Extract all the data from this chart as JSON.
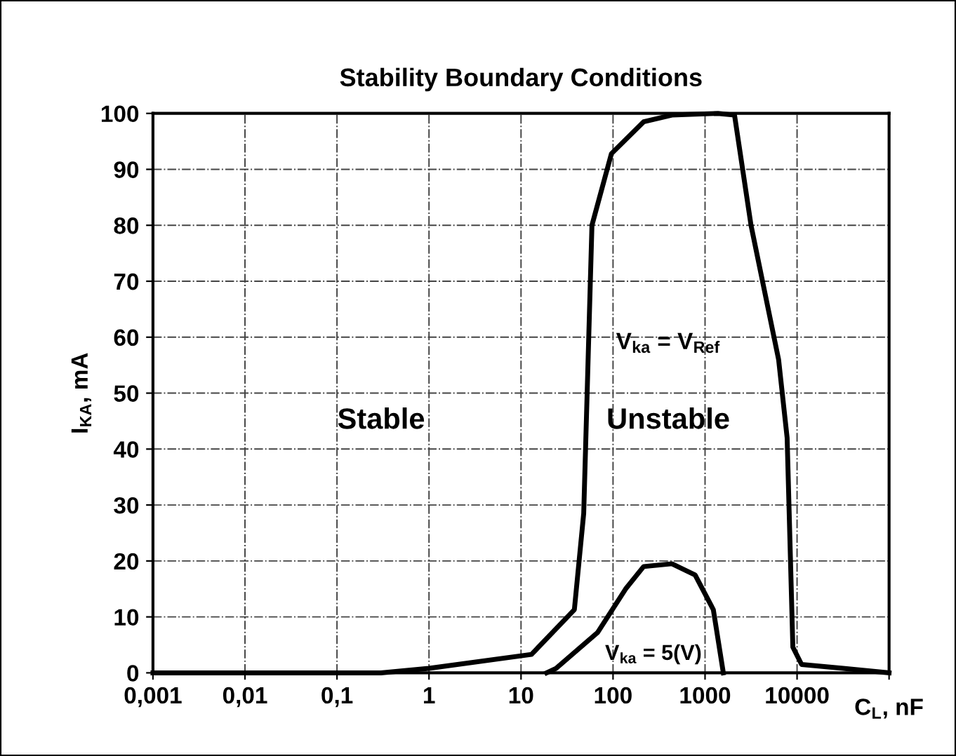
{
  "chart_data": {
    "type": "line",
    "title": "Stability Boundary Conditions",
    "xlabel": "C$_{L}$, nF",
    "ylabel": "I$_{KA}$, mA",
    "log": "x",
    "xlim": [
      0.001,
      100000
    ],
    "ylim": [
      0,
      100
    ],
    "xticks": [
      {
        "value": 0.001,
        "label": "0,001"
      },
      {
        "value": 0.01,
        "label": "0,01"
      },
      {
        "value": 0.1,
        "label": "0,1"
      },
      1,
      10,
      100,
      1000,
      10000,
      {
        "value": 100000,
        "label": null
      }
    ],
    "yticks": [
      0,
      10,
      20,
      30,
      40,
      50,
      60,
      70,
      80,
      90,
      100
    ],
    "grid": true,
    "line_style": "solid",
    "marker": "none",
    "series": [
      {
        "name": "V$_{ka}$ = V$_{Ref}$",
        "color": "#000000",
        "x": [
          0.001,
          0.3,
          1,
          13,
          38,
          48,
          59,
          96,
          215,
          436,
          1380,
          2090,
          3160,
          6300,
          7800,
          9000,
          11200,
          31600,
          100000
        ],
        "values": [
          0,
          0,
          0.8,
          3.3,
          11.3,
          28.5,
          80,
          92.8,
          98.5,
          99.7,
          100,
          99.7,
          80,
          56,
          42,
          4.6,
          1.5,
          0.8,
          0
        ]
      },
      {
        "name": "V$_{ka}$ = 5(V)",
        "color": "#000000",
        "x": [
          19,
          24,
          68,
          137,
          215,
          436,
          780,
          1230,
          1580
        ],
        "values": [
          0,
          0.8,
          7.2,
          15,
          19,
          19.5,
          17.5,
          11.3,
          0
        ]
      }
    ],
    "annotations": [
      "Stable",
      "Unstable"
    ]
  }
}
